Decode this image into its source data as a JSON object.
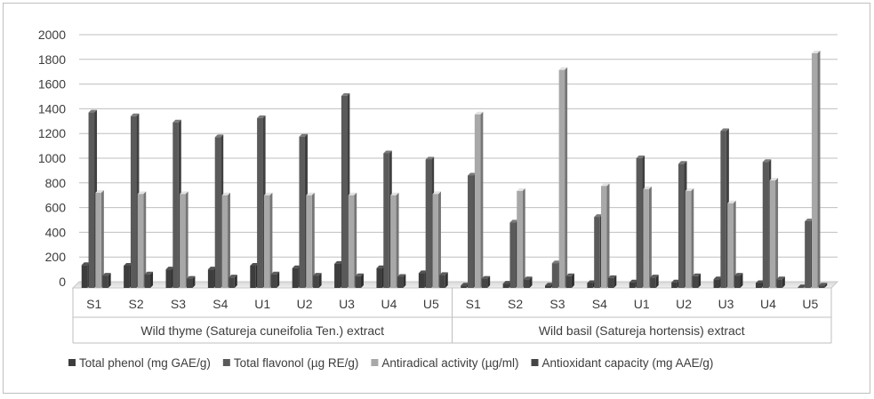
{
  "chart_data": {
    "type": "bar",
    "groups": [
      {
        "label": "Wild thyme (Satureja cuneifolia Ten.) extract",
        "categories": [
          "S1",
          "S2",
          "S3",
          "S4",
          "U1",
          "U2",
          "U3",
          "U4",
          "U5"
        ]
      },
      {
        "label": "Wild basil (Satureja hortensis) extract",
        "categories": [
          "S1",
          "S2",
          "S3",
          "S4",
          "U1",
          "U2",
          "U3",
          "U4",
          "U5"
        ]
      }
    ],
    "series": [
      {
        "name": "Total phenol (mg GAE/g)",
        "color": "#3d3d3d",
        "values": [
          185,
          180,
          150,
          150,
          180,
          160,
          195,
          160,
          120,
          20,
          35,
          20,
          40,
          45,
          45,
          70,
          40,
          5
        ]
      },
      {
        "name": "Total flavonol (µg RE/g)",
        "color": "#5a5a5a",
        "values": [
          1420,
          1390,
          1340,
          1220,
          1375,
          1225,
          1555,
          1090,
          1040,
          910,
          530,
          200,
          575,
          1050,
          1005,
          1270,
          1020,
          540
        ]
      },
      {
        "name": "Antiradical activity (µg/ml)",
        "color": "#a8a8a8",
        "values": [
          770,
          760,
          760,
          750,
          750,
          750,
          750,
          750,
          760,
          1405,
          785,
          1765,
          825,
          800,
          785,
          685,
          870,
          1900
        ]
      },
      {
        "name": "Antioxidant capacity (mg AAE/g)",
        "color": "#454545",
        "values": [
          100,
          110,
          75,
          85,
          110,
          100,
          95,
          90,
          105,
          75,
          70,
          95,
          80,
          85,
          95,
          100,
          70,
          20
        ]
      }
    ],
    "ylim": [
      0,
      2000
    ],
    "yticks": [
      "0",
      "200",
      "400",
      "600",
      "800",
      "1000",
      "1200",
      "1400",
      "1600",
      "1800",
      "2000"
    ],
    "grid": true,
    "legend_position": "bottom"
  }
}
